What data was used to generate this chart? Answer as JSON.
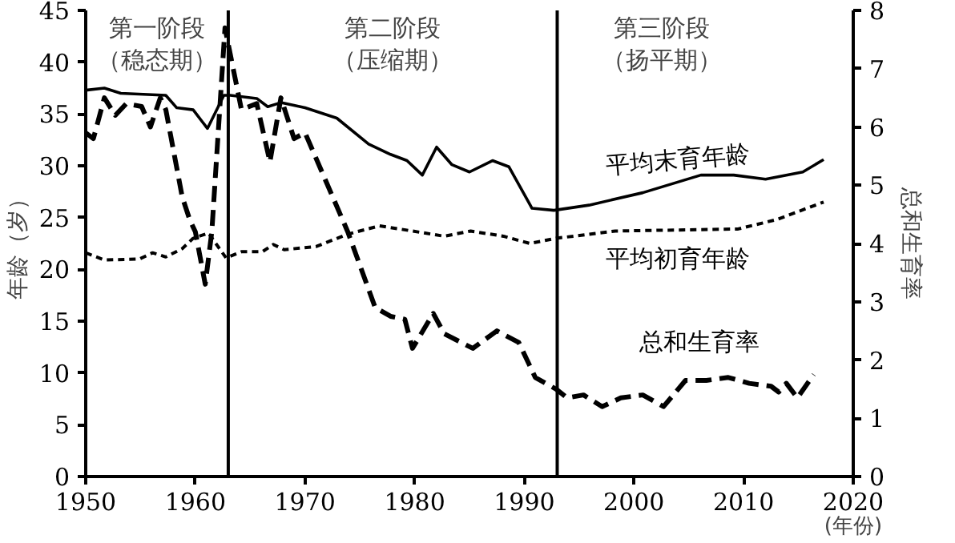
{
  "chart_data": {
    "type": "line",
    "xlabel": "(年份)",
    "ylabel": "年龄（岁）",
    "y2label": "总和生育率",
    "xlim": [
      1950,
      2020
    ],
    "xticks": [
      1950,
      1960,
      1970,
      1980,
      1990,
      2000,
      2010,
      2020
    ],
    "ylim": [
      0,
      45
    ],
    "yticks": [
      0,
      5,
      10,
      15,
      20,
      25,
      30,
      35,
      40,
      45
    ],
    "y2lim": [
      0,
      8
    ],
    "y2ticks": [
      0,
      1,
      2,
      3,
      4,
      5,
      6,
      7,
      8
    ],
    "grid": false,
    "marker": "none",
    "ref_lines": [
      {
        "axis": "x",
        "value": 1963,
        "color": "#000000"
      },
      {
        "axis": "x",
        "value": 1993,
        "color": "#000000"
      }
    ],
    "annotations": [
      "第一阶段",
      "（稳态期）",
      "第二阶段",
      "（压缩期）",
      "第三阶段",
      "（扬平期）"
    ],
    "series": [
      {
        "name": "平均末育年龄",
        "color": "#000000",
        "line_style": "solid",
        "x": [
          1950,
          1951.7,
          1953.2,
          1957.3,
          1958.3,
          1959.8,
          1961.1,
          1962.6,
          1963.2,
          1965.6,
          1966.6,
          1967.8,
          1970,
          1972.9,
          1975.8,
          1977.8,
          1979.3,
          1980.7,
          1982,
          1983.4,
          1985,
          1987.1,
          1988.6,
          1990.7,
          1992.7,
          1995.9,
          2000.8,
          2006.1,
          2009.1,
          2012,
          2015.4,
          2017.3
        ],
        "values": [
          37.3,
          37.5,
          37.0,
          36.8,
          35.6,
          35.4,
          33.6,
          36.8,
          36.8,
          36.5,
          35.7,
          36.1,
          35.6,
          34.6,
          32.1,
          31.1,
          30.5,
          29.1,
          31.8,
          30.1,
          29.4,
          30.5,
          29.9,
          25.9,
          25.7,
          26.2,
          27.4,
          29.1,
          29.1,
          28.7,
          29.4,
          30.6
        ]
      },
      {
        "name": "平均初育年龄",
        "color": "#000000",
        "line_style": "dotted",
        "x": [
          1950,
          1951.7,
          1954.9,
          1956.1,
          1957.3,
          1958.8,
          1959.8,
          1961.2,
          1962.8,
          1964.2,
          1966.1,
          1967.1,
          1968.1,
          1971,
          1973.9,
          1976.8,
          1979.8,
          1982.7,
          1985.1,
          1988.1,
          1990.5,
          1992.9,
          1998.3,
          2009.5,
          2013,
          2017.3
        ],
        "values": [
          21.6,
          20.9,
          21.0,
          21.6,
          21.2,
          22.0,
          23.0,
          23.5,
          21.1,
          21.7,
          21.7,
          22.4,
          21.9,
          22.2,
          23.4,
          24.2,
          23.7,
          23.2,
          23.7,
          23.2,
          22.5,
          23.0,
          23.7,
          23.9,
          24.8,
          26.5
        ]
      },
      {
        "name": "总和生育率",
        "color": "#000000",
        "line_style": "dashed",
        "axis": "y2",
        "x": [
          1950,
          1950.7,
          1951.7,
          1952.7,
          1953.7,
          1955.1,
          1955.9,
          1956.8,
          1957.3,
          1958.8,
          1959.5,
          1960,
          1960.9,
          1961.5,
          1962.7,
          1964.2,
          1965.6,
          1966.8,
          1967.8,
          1969,
          1970,
          1973.9,
          1976.4,
          1977.8,
          1979.1,
          1979.8,
          1981.7,
          1982.7,
          1985.3,
          1987.5,
          1989.5,
          1991,
          1992.9,
          1993.9,
          1995.4,
          1997.1,
          1998.8,
          2000.8,
          2002.7,
          2004.7,
          2006.6,
          2008.6,
          2010.5,
          2012.5,
          2013.2,
          2013.9,
          2014.9,
          2016.4
        ],
        "values": [
          5.9,
          5.8,
          6.5,
          6.2,
          6.4,
          6.35,
          6.0,
          6.5,
          6.3,
          4.8,
          4.4,
          4.2,
          3.3,
          4.2,
          7.7,
          6.3,
          6.4,
          5.4,
          6.5,
          5.8,
          5.9,
          4.2,
          2.9,
          2.75,
          2.7,
          2.2,
          2.8,
          2.45,
          2.2,
          2.5,
          2.3,
          1.7,
          1.5,
          1.35,
          1.4,
          1.2,
          1.35,
          1.4,
          1.2,
          1.65,
          1.65,
          1.7,
          1.6,
          1.55,
          1.45,
          1.6,
          1.35,
          1.75
        ]
      }
    ]
  }
}
